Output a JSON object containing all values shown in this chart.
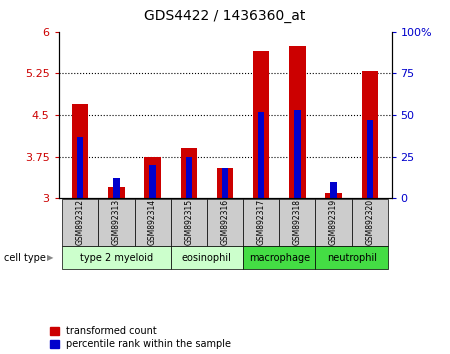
{
  "title": "GDS4422 / 1436360_at",
  "samples": [
    "GSM892312",
    "GSM892313",
    "GSM892314",
    "GSM892315",
    "GSM892316",
    "GSM892317",
    "GSM892318",
    "GSM892319",
    "GSM892320"
  ],
  "transformed_counts": [
    4.7,
    3.2,
    3.75,
    3.9,
    3.55,
    5.65,
    5.75,
    3.1,
    5.3
  ],
  "percentile_ranks": [
    37,
    12,
    20,
    25,
    18,
    52,
    53,
    10,
    47
  ],
  "cell_type_spans": [
    {
      "label": "type 2 myeloid",
      "indices": [
        0,
        1,
        2
      ],
      "color": "#ccffcc"
    },
    {
      "label": "eosinophil",
      "indices": [
        3,
        4
      ],
      "color": "#ccffcc"
    },
    {
      "label": "macrophage",
      "indices": [
        5,
        6
      ],
      "color": "#44dd44"
    },
    {
      "label": "neutrophil",
      "indices": [
        7,
        8
      ],
      "color": "#44dd44"
    }
  ],
  "ylim_left": [
    3,
    6
  ],
  "ylim_right": [
    0,
    100
  ],
  "yticks_left": [
    3,
    3.75,
    4.5,
    5.25,
    6
  ],
  "ytick_labels_left": [
    "3",
    "3.75",
    "4.5",
    "5.25",
    "6"
  ],
  "yticks_right": [
    0,
    25,
    50,
    75,
    100
  ],
  "ytick_labels_right": [
    "0",
    "25",
    "50",
    "75",
    "100%"
  ],
  "bar_color_red": "#cc0000",
  "bar_color_blue": "#0000cc",
  "left_tick_color": "#cc0000",
  "right_tick_color": "#0000cc",
  "legend_red_label": "transformed count",
  "legend_blue_label": "percentile rank within the sample",
  "cell_type_label": "cell type",
  "sample_box_color": "#cccccc",
  "dotted_yticks": [
    3.75,
    4.5,
    5.25
  ]
}
